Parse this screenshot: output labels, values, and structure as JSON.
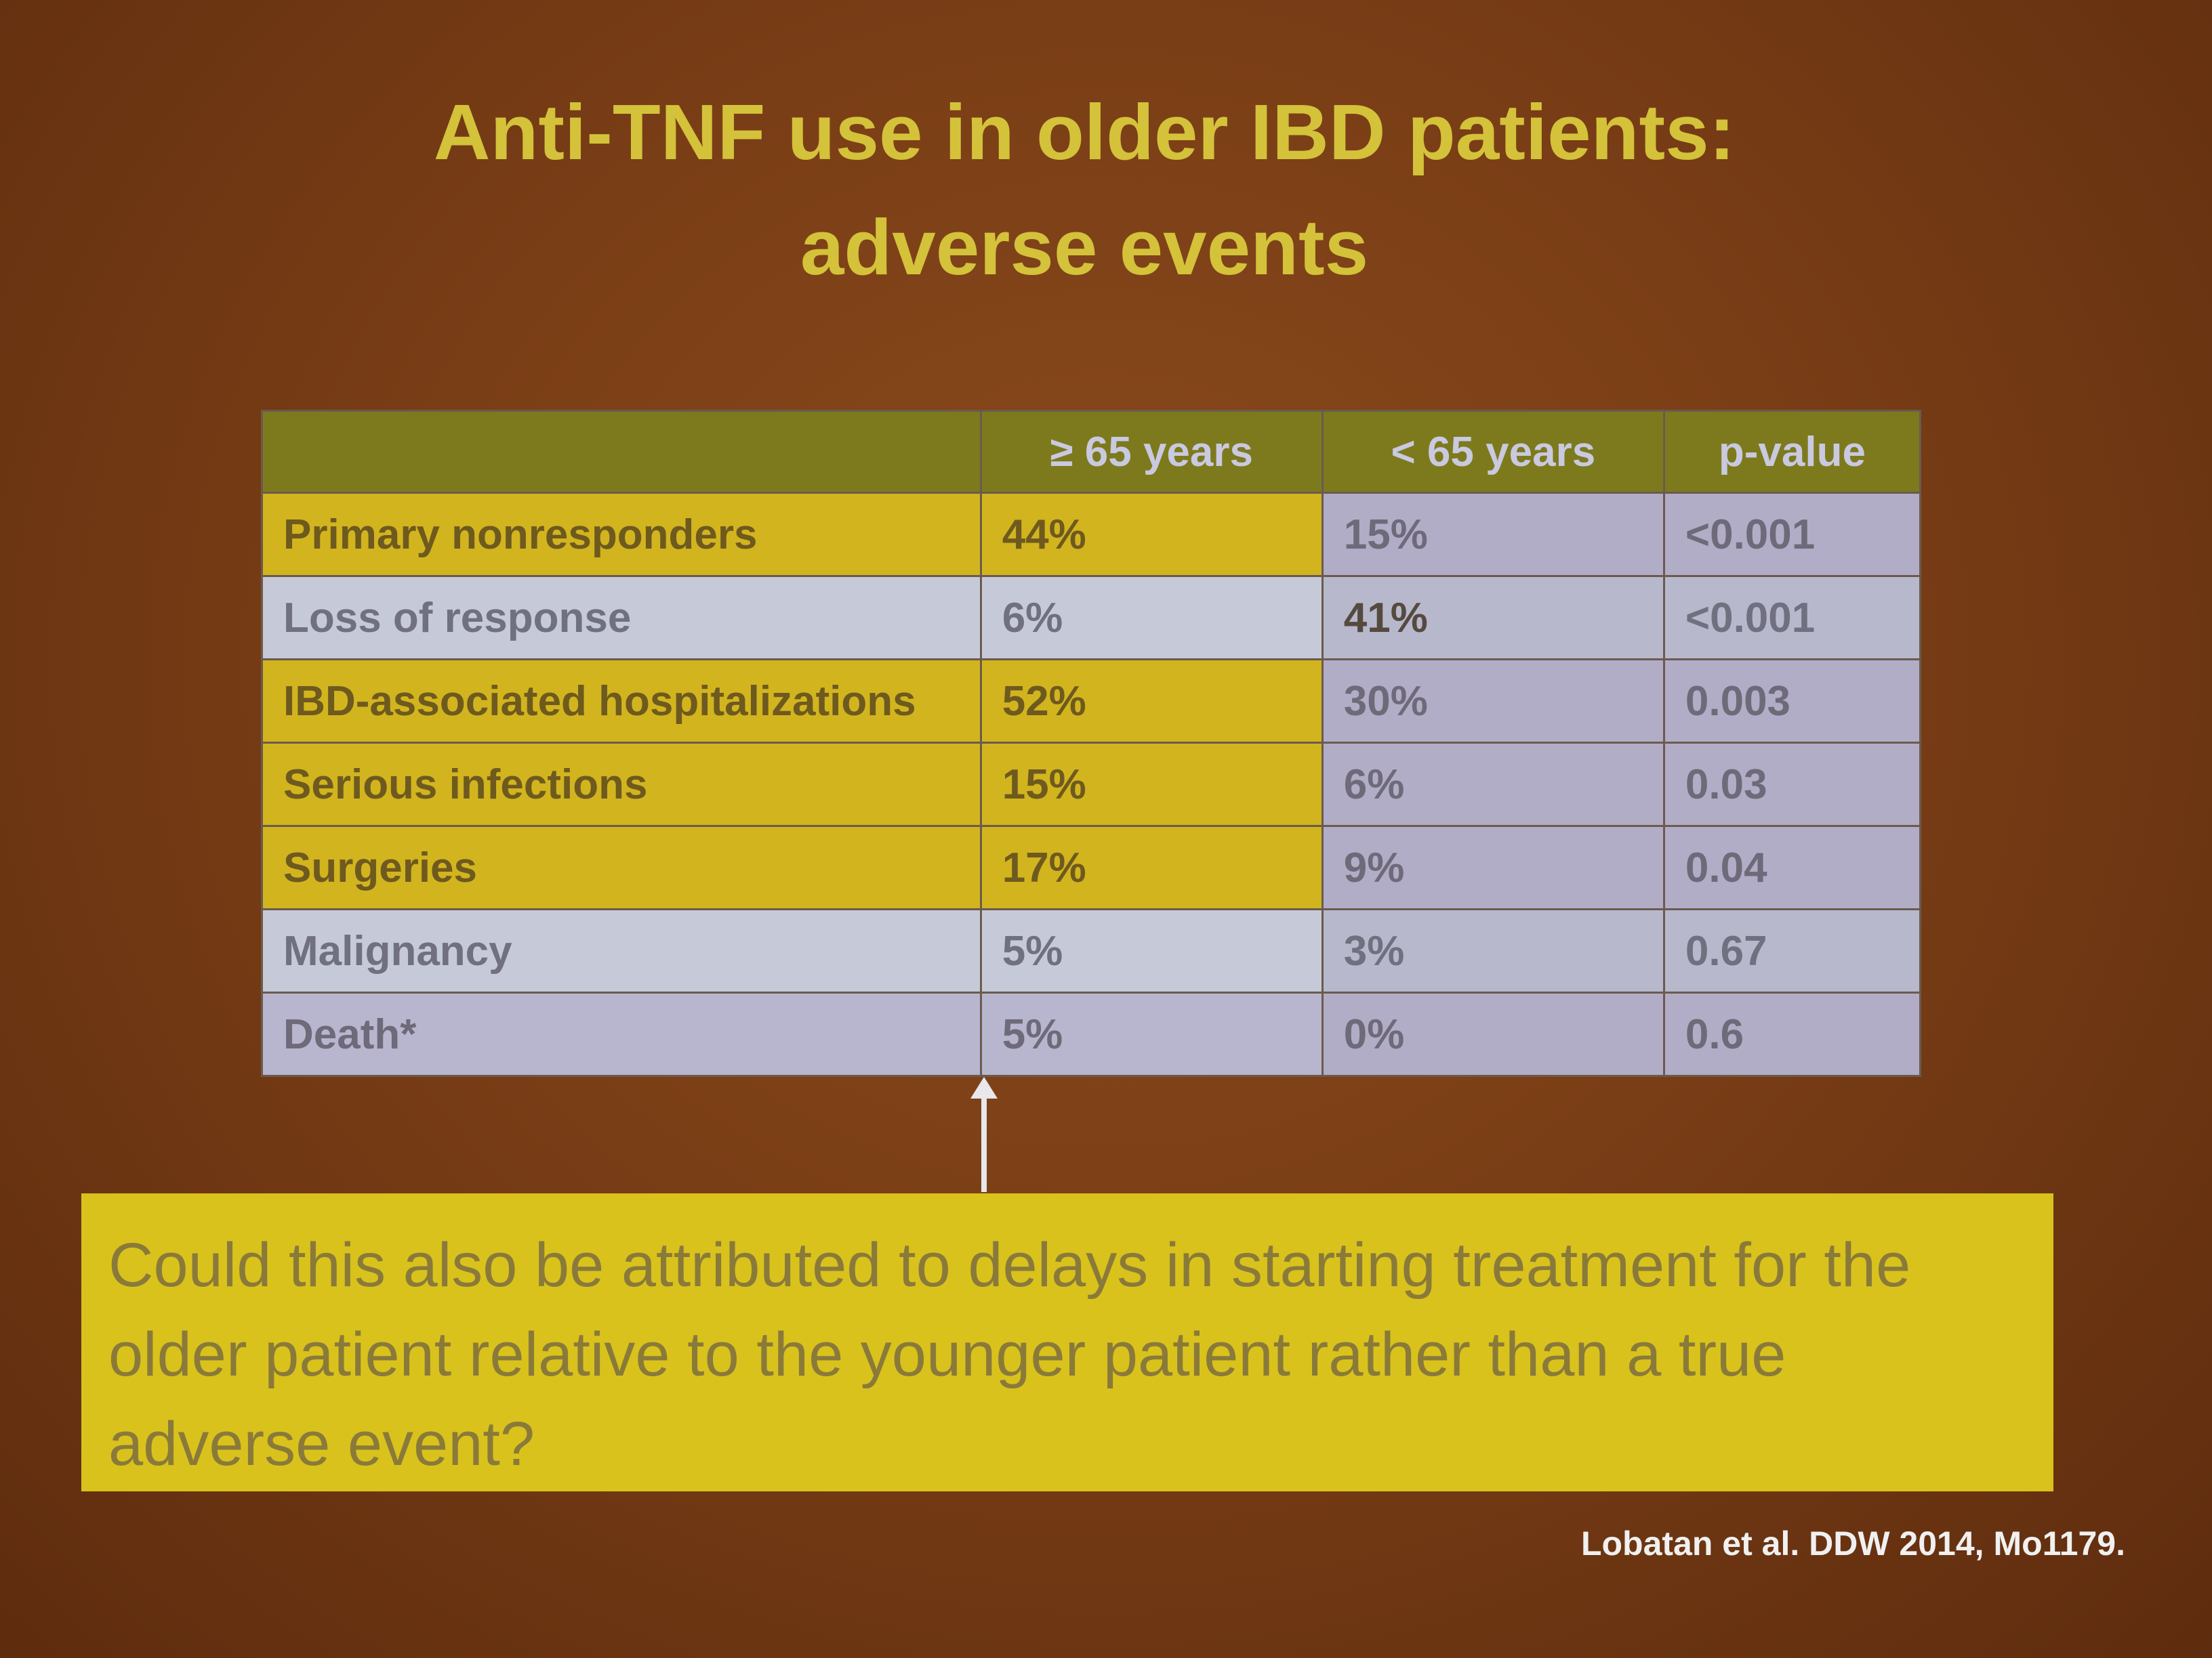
{
  "title": {
    "line1": "Anti-TNF use in older IBD patients:",
    "line2": "adverse events"
  },
  "table": {
    "headers": [
      "",
      "≥ 65 years",
      "< 65 years",
      "p-value"
    ],
    "rows": [
      {
        "label": "Primary nonresponders",
        "older": "44%",
        "younger": "15%",
        "p": "<0.001"
      },
      {
        "label": "Loss of response",
        "older": "6%",
        "younger": "41%",
        "p": "<0.001"
      },
      {
        "label": "IBD-associated hospitalizations",
        "older": "52%",
        "younger": "30%",
        "p": "0.003"
      },
      {
        "label": "Serious infections",
        "older": "15%",
        "younger": "6%",
        "p": "0.03"
      },
      {
        "label": "Surgeries",
        "older": "17%",
        "younger": "9%",
        "p": "0.04"
      },
      {
        "label": "Malignancy",
        "older": "5%",
        "younger": "3%",
        "p": "0.67"
      },
      {
        "label": "Death*",
        "older": "5%",
        "younger": "0%",
        "p": "0.6"
      }
    ]
  },
  "callout": {
    "line1": "Could this also be attributed to delays in starting treatment for the",
    "line2": "older patient relative to the younger patient rather than a true",
    "line3": "adverse event?"
  },
  "citation": "Lobatan et al. DDW 2014, Mo1179.",
  "colors": {
    "background": "#7a3e16",
    "title": "#d4c23a",
    "header": "#7d7a1e",
    "highlight": "#d2b41e",
    "callout": "#d9c21c"
  }
}
